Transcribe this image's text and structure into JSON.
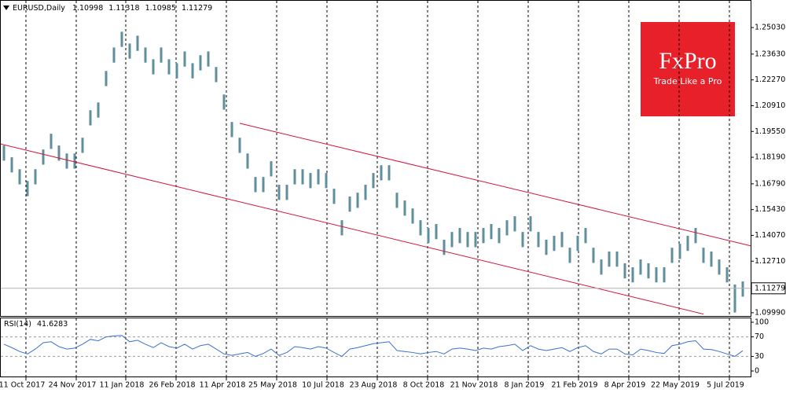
{
  "chart_data": [
    {
      "type": "ohlc",
      "title": "EURUSD,Daily",
      "color": "#5f8e9c",
      "grid": true,
      "last_bar": {
        "open": 1.10998,
        "high": 1.11318,
        "low": 1.10985,
        "close": 1.11279
      },
      "high": [
        1.1881,
        1.1819,
        1.1756,
        1.1694,
        1.1756,
        1.186,
        1.1943,
        1.1881,
        1.1839,
        1.1839,
        1.1922,
        1.2067,
        1.2108,
        1.2274,
        1.2398,
        1.2481,
        1.2419,
        1.246,
        1.2398,
        1.2336,
        1.2398,
        1.2336,
        1.2315,
        1.2377,
        1.2315,
        1.2357,
        1.2377,
        1.2295,
        1.215,
        1.2005,
        1.1922,
        1.1839,
        1.1715,
        1.1715,
        1.1798,
        1.1674,
        1.1674,
        1.1756,
        1.1756,
        1.1736,
        1.1756,
        1.1736,
        1.1653,
        1.1487,
        1.1612,
        1.1632,
        1.1674,
        1.1736,
        1.1777,
        1.1777,
        1.1632,
        1.1591,
        1.1549,
        1.1487,
        1.1446,
        1.1467,
        1.1384,
        1.1425,
        1.1446,
        1.1425,
        1.1425,
        1.1446,
        1.1467,
        1.1446,
        1.1487,
        1.1508,
        1.1425,
        1.1508,
        1.1425,
        1.1384,
        1.1405,
        1.1425,
        1.1342,
        1.1405,
        1.1446,
        1.1342,
        1.128,
        1.1322,
        1.1322,
        1.126,
        1.1239,
        1.128,
        1.126,
        1.1239,
        1.1239,
        1.1342,
        1.1363,
        1.1405,
        1.1446,
        1.1342,
        1.1322,
        1.128,
        1.1239,
        1.1148,
        1.1164
      ],
      "low": [
        1.1801,
        1.1739,
        1.1676,
        1.1614,
        1.1676,
        1.178,
        1.1863,
        1.1801,
        1.1759,
        1.1759,
        1.1842,
        1.1987,
        1.2028,
        1.2194,
        1.2318,
        1.2401,
        1.2339,
        1.238,
        1.2318,
        1.2256,
        1.2318,
        1.2256,
        1.2235,
        1.2297,
        1.2235,
        1.2277,
        1.2297,
        1.2215,
        1.207,
        1.1925,
        1.1842,
        1.1759,
        1.1635,
        1.1635,
        1.1718,
        1.1594,
        1.1594,
        1.1676,
        1.1676,
        1.1656,
        1.1676,
        1.1656,
        1.1573,
        1.1407,
        1.1532,
        1.1552,
        1.1594,
        1.1656,
        1.1697,
        1.1697,
        1.1552,
        1.1511,
        1.1469,
        1.1407,
        1.1366,
        1.1387,
        1.1304,
        1.1345,
        1.1366,
        1.1345,
        1.1345,
        1.1366,
        1.1387,
        1.1366,
        1.1407,
        1.1428,
        1.1345,
        1.1428,
        1.1345,
        1.1304,
        1.1325,
        1.1345,
        1.1262,
        1.1325,
        1.1366,
        1.1262,
        1.12,
        1.1242,
        1.1242,
        1.118,
        1.1159,
        1.12,
        1.118,
        1.1159,
        1.1159,
        1.1262,
        1.1283,
        1.1325,
        1.1366,
        1.1262,
        1.1242,
        1.12,
        1.1159,
        1.1,
        1.1084
      ],
      "ylim": [
        1.0982,
        1.264
      ],
      "yticks": [
        {
          "value": 1.2503,
          "label": "1.25030"
        },
        {
          "value": 1.2363,
          "label": "1.23630"
        },
        {
          "value": 1.2227,
          "label": "1.22270"
        },
        {
          "value": 1.2091,
          "label": "1.20910"
        },
        {
          "value": 1.1955,
          "label": "1.19550"
        },
        {
          "value": 1.1819,
          "label": "1.18190"
        },
        {
          "value": 1.1679,
          "label": "1.16790"
        },
        {
          "value": 1.1543,
          "label": "1.15430"
        },
        {
          "value": 1.1407,
          "label": "1.14070"
        },
        {
          "value": 1.1271,
          "label": "1.12710"
        },
        {
          "value": 1.0999,
          "label": "1.09990"
        }
      ],
      "xlim": [
        -0.5,
        95
      ],
      "xticks": [
        {
          "value": 2.8,
          "label": "11 Oct 2017"
        },
        {
          "value": 9.2,
          "label": "24 Nov 2017"
        },
        {
          "value": 15.5,
          "label": "11 Jan 2018"
        },
        {
          "value": 21.9,
          "label": "26 Feb 2018"
        },
        {
          "value": 28.3,
          "label": "11 Apr 2018"
        },
        {
          "value": 34.7,
          "label": "25 May 2018"
        },
        {
          "value": 41.1,
          "label": "10 Jul 2018"
        },
        {
          "value": 47.5,
          "label": "23 Aug 2018"
        },
        {
          "value": 53.9,
          "label": "8 Oct 2018"
        },
        {
          "value": 60.3,
          "label": "21 Nov 2018"
        },
        {
          "value": 66.7,
          "label": "8 Jan 2019"
        },
        {
          "value": 73.1,
          "label": "21 Feb 2019"
        },
        {
          "value": 79.5,
          "label": "8 Apr 2019"
        },
        {
          "value": 85.9,
          "label": "22 May 2019"
        },
        {
          "value": 92.3,
          "label": "5 Jul 2019"
        }
      ],
      "trendlines": [
        {
          "color": "#d7143c",
          "x": [
            30,
            95
          ],
          "y": [
            1.1998,
            1.1352
          ]
        },
        {
          "color": "#d7143c",
          "x": [
            -0.5,
            89
          ],
          "y": [
            1.189,
            1.0992
          ]
        }
      ],
      "logo": {
        "brand": "FxPro",
        "tagline": "Trade Like a Pro",
        "color": "#e8202a"
      }
    },
    {
      "type": "line",
      "title": "RSI(14)",
      "color": "#3b6fd0",
      "values": [
        55,
        48,
        40,
        35,
        45,
        58,
        60,
        50,
        45,
        47,
        55,
        65,
        62,
        70,
        72,
        73,
        60,
        63,
        55,
        48,
        58,
        50,
        47,
        55,
        45,
        52,
        55,
        45,
        35,
        32,
        35,
        38,
        30,
        36,
        45,
        32,
        38,
        50,
        48,
        45,
        50,
        47,
        38,
        30,
        45,
        48,
        52,
        56,
        58,
        60,
        42,
        40,
        38,
        35,
        38,
        40,
        35,
        45,
        47,
        45,
        42,
        47,
        45,
        50,
        52,
        55,
        42,
        52,
        45,
        42,
        45,
        48,
        40,
        48,
        52,
        40,
        35,
        45,
        45,
        35,
        33,
        45,
        42,
        38,
        36,
        52,
        55,
        60,
        62,
        45,
        44,
        40,
        35,
        30,
        41.6283
      ],
      "ylim": [
        0,
        100
      ],
      "yticks": [
        0,
        30,
        70,
        100
      ]
    }
  ]
}
